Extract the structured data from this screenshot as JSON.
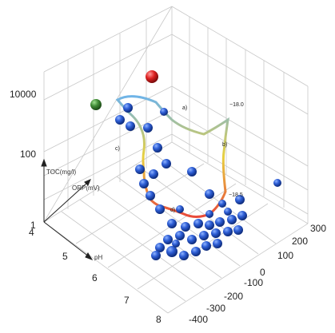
{
  "chart_data": {
    "type": "scatter",
    "title": "",
    "axes": {
      "z": {
        "label": "TOC(mg/l)",
        "scale": "log",
        "range": [
          1,
          10000
        ],
        "ticks": [
          "10000",
          "100",
          "1"
        ]
      },
      "x": {
        "label": "pH",
        "range": [
          4,
          8
        ],
        "ticks": [
          "4",
          "5",
          "6",
          "7",
          "8"
        ]
      },
      "y": {
        "label": "ORP(mV)",
        "range": [
          -400,
          300
        ],
        "ticks": [
          "300",
          "200",
          "100",
          "0",
          "-100",
          "-200",
          "-300",
          "-400"
        ]
      }
    },
    "grid": true,
    "annotations": [
      "a)",
      "b)",
      "c)",
      "d)",
      "−18.0",
      "−18.5"
    ],
    "highlight_colors": {
      "red_point": "#cc2222",
      "green_point": "#3f8a35",
      "path": "#d93a3a",
      "path_mid": "#e8c040",
      "path_end": "#6fb4e8"
    },
    "points_pixel_only": "—"
  },
  "labels": {
    "z10000": "10000",
    "z100": "100",
    "z1": "1",
    "ztitle": "TOC(mg/l)",
    "ytitle": "ORP(mV)",
    "xtitle": "pH",
    "x4": "4",
    "x5": "5",
    "x6": "6",
    "x7": "7",
    "x8": "8",
    "y300": "300",
    "y200": "200",
    "y100": "100",
    "y0": "0",
    "ym100": "-100",
    "ym200": "-200",
    "ym300": "-300",
    "ym400": "-400",
    "anA": "a)",
    "anB": "b)",
    "anC": "c)",
    "anD": "d)",
    "anV1": "−18.0",
    "anV2": "−18.5"
  }
}
